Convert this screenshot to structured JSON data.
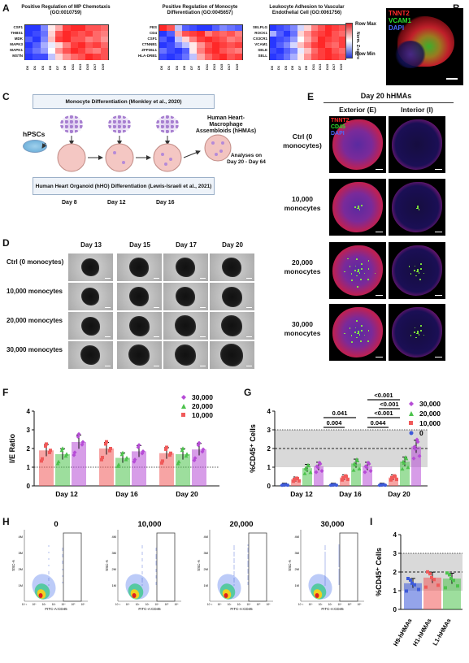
{
  "panels": {
    "A": "A",
    "B": "B",
    "C": "C",
    "D": "D",
    "E": "E",
    "F": "F",
    "G": "G",
    "H": "H",
    "I": "I"
  },
  "heatmaps": [
    {
      "title": "Positive Regulation of MP Chemotaxis (GO:0010759)",
      "rows": [
        "CSF1",
        "THBS1",
        "MDK",
        "MAPK3",
        "MAPK1",
        "MSTN"
      ]
    },
    {
      "title": "Positive Regulation of Monocyte Differentiation (GO:0045657)",
      "rows": [
        "FES",
        "CD4",
        "CSF1",
        "CTNNB1",
        "ZFP36L1",
        "HLA-DRB1"
      ]
    },
    {
      "title": "Leukocyte Adhesion to Vascular Endothelial Cell (GO:0061756)",
      "rows": [
        "SELPLG",
        "ROCK1",
        "CX3CR1",
        "VCAM1",
        "SELE",
        "SELL"
      ]
    }
  ],
  "heatmap_cols": [
    "D0",
    "D1",
    "D3",
    "D5",
    "D7",
    "D9",
    "D11",
    "D13",
    "D15",
    "D17",
    "D19"
  ],
  "heatmap_legend": {
    "max": "Row Max",
    "min": "Row Min",
    "axis": "Norm. Z-score"
  },
  "panelB": {
    "labels": [
      "TNNT2",
      "VCAM1",
      "DAPI"
    ]
  },
  "panelC": {
    "top_box": "Monocyte Differentiation (Monkley et al., 2020)",
    "bottom_box": "Human Heart Organoid (hHO) Differentiation (Lewis-Israeli et al., 2021)",
    "hpscs": "hPSCs",
    "days": [
      "Day 8",
      "Day 12",
      "Day 16"
    ],
    "result": "Human Heart-Macrophage Assembloids (hHMAs)",
    "analyses": "Analyses on Day 20 - Day 64"
  },
  "panelD": {
    "cols": [
      "Day 13",
      "Day 15",
      "Day 17",
      "Day 20"
    ],
    "rows": [
      "Ctrl (0 monocytes)",
      "10,000 monocytes",
      "20,000 monocytes",
      "30,000 monocytes"
    ]
  },
  "panelE": {
    "title": "Day 20 hHMAs",
    "cols": [
      "Exterior (E)",
      "Interior (I)"
    ],
    "rows": [
      "Ctrl (0 monocytes)",
      "10,000 monocytes",
      "20,000 monocytes",
      "30,000 monocytes"
    ],
    "labels": [
      "TNNT2",
      "CD45",
      "DAPI"
    ]
  },
  "chart_data": [
    {
      "type": "bar",
      "categories": [
        "Day 12",
        "Day 16",
        "Day 20"
      ],
      "ylabel": "I/E Ratio",
      "ylim": [
        0,
        4
      ],
      "yticks": [
        0,
        1,
        2,
        3,
        4
      ],
      "series": [
        {
          "name": "10,000",
          "color": "#f05a5a",
          "values": [
            1.9,
            2.0,
            1.75
          ]
        },
        {
          "name": "20,000",
          "color": "#4cc24c",
          "values": [
            1.7,
            1.5,
            1.7
          ]
        },
        {
          "name": "30,000",
          "color": "#b64cd6",
          "values": [
            2.35,
            1.85,
            1.95
          ]
        }
      ]
    },
    {
      "type": "bar",
      "categories": [
        "Day 12",
        "Day 16",
        "Day 20"
      ],
      "ylabel": "%CD45⁺ Cells",
      "ylim": [
        0,
        4
      ],
      "yticks": [
        0,
        1,
        2,
        3,
        4
      ],
      "series": [
        {
          "name": "0",
          "color": "#3d5ad9",
          "values": [
            0.05,
            0.05,
            0.05
          ]
        },
        {
          "name": "10,000",
          "color": "#f05a5a",
          "values": [
            0.35,
            0.45,
            0.45
          ]
        },
        {
          "name": "20,000",
          "color": "#4cc24c",
          "values": [
            0.95,
            1.2,
            1.3
          ]
        },
        {
          "name": "30,000",
          "color": "#b64cd6",
          "values": [
            1.05,
            1.05,
            2.1
          ]
        }
      ],
      "annotations": [
        "0.004",
        "0.041",
        "0.044",
        "<0.001",
        "<0.001",
        "<0.001"
      ]
    },
    {
      "type": "scatter",
      "panels": [
        "0",
        "10,000",
        "20,000",
        "30,000"
      ],
      "xlabel": "FITC-A:CD45",
      "ylabel": "SSC-A",
      "yticks": [
        "1M",
        "2M",
        "3M",
        "4M"
      ],
      "xticks": [
        "10⁻²",
        "10⁰",
        "10²",
        "10³",
        "10⁴",
        "10⁵",
        "10⁶"
      ]
    },
    {
      "type": "bar",
      "categories": [
        "H9-hHMAs",
        "H1-hHMAs",
        "L1-hHMAs"
      ],
      "ylabel": "%CD45⁺ Cells",
      "ylim": [
        0,
        4
      ],
      "yticks": [
        0,
        1,
        2,
        3,
        4
      ],
      "values": [
        1.4,
        1.7,
        1.65
      ],
      "colors": [
        "#3d5ad9",
        "#f05a5a",
        "#4cc24c"
      ]
    }
  ],
  "legendF": [
    "30,000",
    "20,000",
    "10,000"
  ],
  "legendG": [
    "30,000",
    "20,000",
    "10,000",
    "0"
  ]
}
